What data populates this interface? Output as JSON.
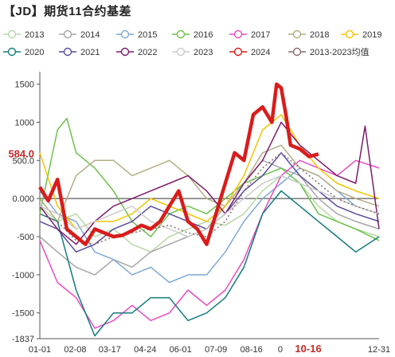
{
  "chart_data": {
    "type": "line",
    "title": "【JD】期货11合约基差",
    "xlabel": "",
    "ylabel": "",
    "ylim": [
      -1837,
      1600
    ],
    "yticks": [
      1500,
      1000,
      500,
      0,
      -500,
      -1000,
      -1500,
      -1837
    ],
    "ytick_labels": [
      "1500",
      "1000",
      "500.0",
      "0.000",
      "-500",
      "-1000",
      "-1500",
      "-1837"
    ],
    "xticks": [
      "01-01",
      "02-08",
      "03-17",
      "04-24",
      "06-01",
      "07-09",
      "08-16",
      "0",
      "10-16",
      "12-31"
    ],
    "xtick_positions": [
      1,
      39,
      76,
      114,
      152,
      190,
      228,
      259,
      289,
      365
    ],
    "highlight_tick": "10-16",
    "current_value_label": "584.0",
    "current_value": 584,
    "zero_line": true,
    "grid": false,
    "legend_position": "top",
    "series": [
      {
        "name": "2013",
        "color": "#b7d8a8",
        "x": [
          1,
          20,
          40,
          60,
          80,
          100,
          120,
          140,
          160,
          180,
          200,
          220,
          240,
          260,
          280,
          300,
          320,
          340,
          365
        ],
        "values": [
          -100,
          -300,
          -200,
          -500,
          -400,
          -600,
          -700,
          -500,
          -400,
          -300,
          -350,
          -200,
          100,
          300,
          200,
          -100,
          -300,
          -400,
          -500
        ]
      },
      {
        "name": "2014",
        "color": "#a6a6a6",
        "x": [
          1,
          20,
          40,
          60,
          80,
          100,
          120,
          140,
          160,
          180,
          200,
          220,
          240,
          260,
          280,
          300,
          320,
          340,
          365
        ],
        "values": [
          -500,
          -700,
          -900,
          -1000,
          -800,
          -900,
          -700,
          -600,
          -500,
          -400,
          -100,
          200,
          500,
          400,
          300,
          0,
          -200,
          -300,
          -400
        ]
      },
      {
        "name": "2015",
        "color": "#7fa9d6",
        "x": [
          1,
          20,
          40,
          60,
          80,
          100,
          120,
          140,
          160,
          180,
          200,
          220,
          240,
          260,
          280,
          300,
          320,
          340,
          365
        ],
        "values": [
          100,
          -200,
          -300,
          -700,
          -800,
          -1000,
          -900,
          -1100,
          -1000,
          -1000,
          -700,
          -300,
          0,
          200,
          400,
          300,
          100,
          -100,
          -200
        ]
      },
      {
        "name": "2016",
        "color": "#6cc24a",
        "x": [
          1,
          20,
          30,
          40,
          60,
          80,
          100,
          120,
          140,
          160,
          180,
          200,
          220,
          240,
          260,
          280,
          300,
          320,
          340,
          365
        ],
        "values": [
          -200,
          900,
          1050,
          600,
          400,
          100,
          -300,
          -500,
          -200,
          -100,
          -200,
          0,
          200,
          300,
          400,
          200,
          -200,
          -300,
          -400,
          -550
        ]
      },
      {
        "name": "2017",
        "color": "#e94bc2",
        "x": [
          1,
          20,
          40,
          60,
          80,
          100,
          120,
          140,
          160,
          180,
          200,
          220,
          240,
          260,
          280,
          300,
          320,
          340,
          365
        ],
        "values": [
          -550,
          -1100,
          -1300,
          -1700,
          -1600,
          -1400,
          -1600,
          -1500,
          -1200,
          -1400,
          -1200,
          -800,
          -200,
          300,
          500,
          400,
          300,
          500,
          400
        ]
      },
      {
        "name": "2018",
        "color": "#b3ad84",
        "x": [
          1,
          20,
          40,
          60,
          80,
          100,
          120,
          140,
          160,
          180,
          200,
          220,
          240,
          260,
          280,
          300,
          320,
          340,
          365
        ],
        "values": [
          0,
          -300,
          300,
          500,
          500,
          300,
          400,
          500,
          300,
          0,
          -100,
          200,
          600,
          700,
          400,
          300,
          100,
          0,
          -100
        ]
      },
      {
        "name": "2019",
        "color": "#f5c400",
        "x": [
          1,
          20,
          40,
          60,
          80,
          100,
          120,
          140,
          160,
          180,
          200,
          220,
          240,
          260,
          280,
          300,
          320,
          340,
          365
        ],
        "values": [
          600,
          -100,
          -400,
          -300,
          -300,
          -200,
          0,
          -100,
          -200,
          -300,
          -100,
          300,
          900,
          1100,
          700,
          400,
          200,
          100,
          0
        ]
      },
      {
        "name": "2020",
        "color": "#137c7c",
        "x": [
          1,
          20,
          40,
          60,
          80,
          100,
          120,
          140,
          160,
          180,
          200,
          220,
          240,
          260,
          280,
          300,
          320,
          340,
          365
        ],
        "values": [
          -200,
          -300,
          -1200,
          -1800,
          -1500,
          -1500,
          -1300,
          -1300,
          -1600,
          -1500,
          -1300,
          -900,
          -200,
          100,
          -100,
          -300,
          -500,
          -700,
          -500
        ]
      },
      {
        "name": "2021",
        "color": "#5a4b9e",
        "x": [
          1,
          20,
          40,
          60,
          80,
          100,
          120,
          140,
          160,
          180,
          200,
          220,
          240,
          260,
          280,
          300,
          320,
          340,
          365
        ],
        "values": [
          -300,
          -400,
          -700,
          -600,
          -400,
          -300,
          -100,
          -200,
          -300,
          -400,
          -200,
          100,
          300,
          600,
          300,
          100,
          -100,
          -200,
          -300
        ]
      },
      {
        "name": "2022",
        "color": "#7c1b6d",
        "x": [
          1,
          20,
          40,
          60,
          80,
          100,
          120,
          140,
          160,
          180,
          200,
          220,
          240,
          260,
          280,
          300,
          320,
          340,
          350,
          365
        ],
        "values": [
          -100,
          -400,
          -600,
          -300,
          -100,
          0,
          100,
          200,
          300,
          100,
          -200,
          200,
          500,
          1000,
          700,
          500,
          300,
          200,
          950,
          -400
        ]
      },
      {
        "name": "2023",
        "color": "#cccccc",
        "x": [
          1,
          20,
          40,
          60,
          80,
          100,
          120,
          140,
          160,
          180,
          200,
          220,
          240,
          260,
          280,
          300,
          320,
          340,
          365
        ],
        "values": [
          -100,
          -200,
          -400,
          -300,
          -200,
          -100,
          -300,
          -400,
          -500,
          -400,
          -200,
          0,
          200,
          300,
          200,
          100,
          0,
          -100,
          -200
        ]
      },
      {
        "name": "2024",
        "color": "#d91c1c",
        "x": [
          1,
          10,
          20,
          30,
          40,
          50,
          60,
          70,
          80,
          90,
          100,
          110,
          120,
          130,
          140,
          150,
          160,
          170,
          180,
          190,
          200,
          210,
          220,
          230,
          240,
          250,
          255,
          260,
          265,
          270,
          280,
          290,
          300
        ],
        "values": [
          150,
          -30,
          250,
          -400,
          -500,
          -600,
          -400,
          -450,
          -500,
          -480,
          -420,
          -350,
          -400,
          -300,
          -100,
          100,
          -300,
          -400,
          -600,
          -200,
          200,
          600,
          500,
          1100,
          1200,
          1000,
          1500,
          1450,
          1100,
          700,
          650,
          550,
          584
        ]
      },
      {
        "name": "2013-2023均值",
        "color": "#8a6d6d",
        "x": [
          1,
          20,
          40,
          60,
          80,
          100,
          120,
          140,
          160,
          180,
          200,
          220,
          240,
          260,
          280,
          300,
          320,
          340,
          365
        ],
        "values": [
          -200,
          -300,
          -550,
          -600,
          -500,
          -450,
          -400,
          -350,
          -450,
          -500,
          -300,
          100,
          400,
          600,
          400,
          200,
          0,
          -100,
          -200
        ]
      }
    ]
  }
}
